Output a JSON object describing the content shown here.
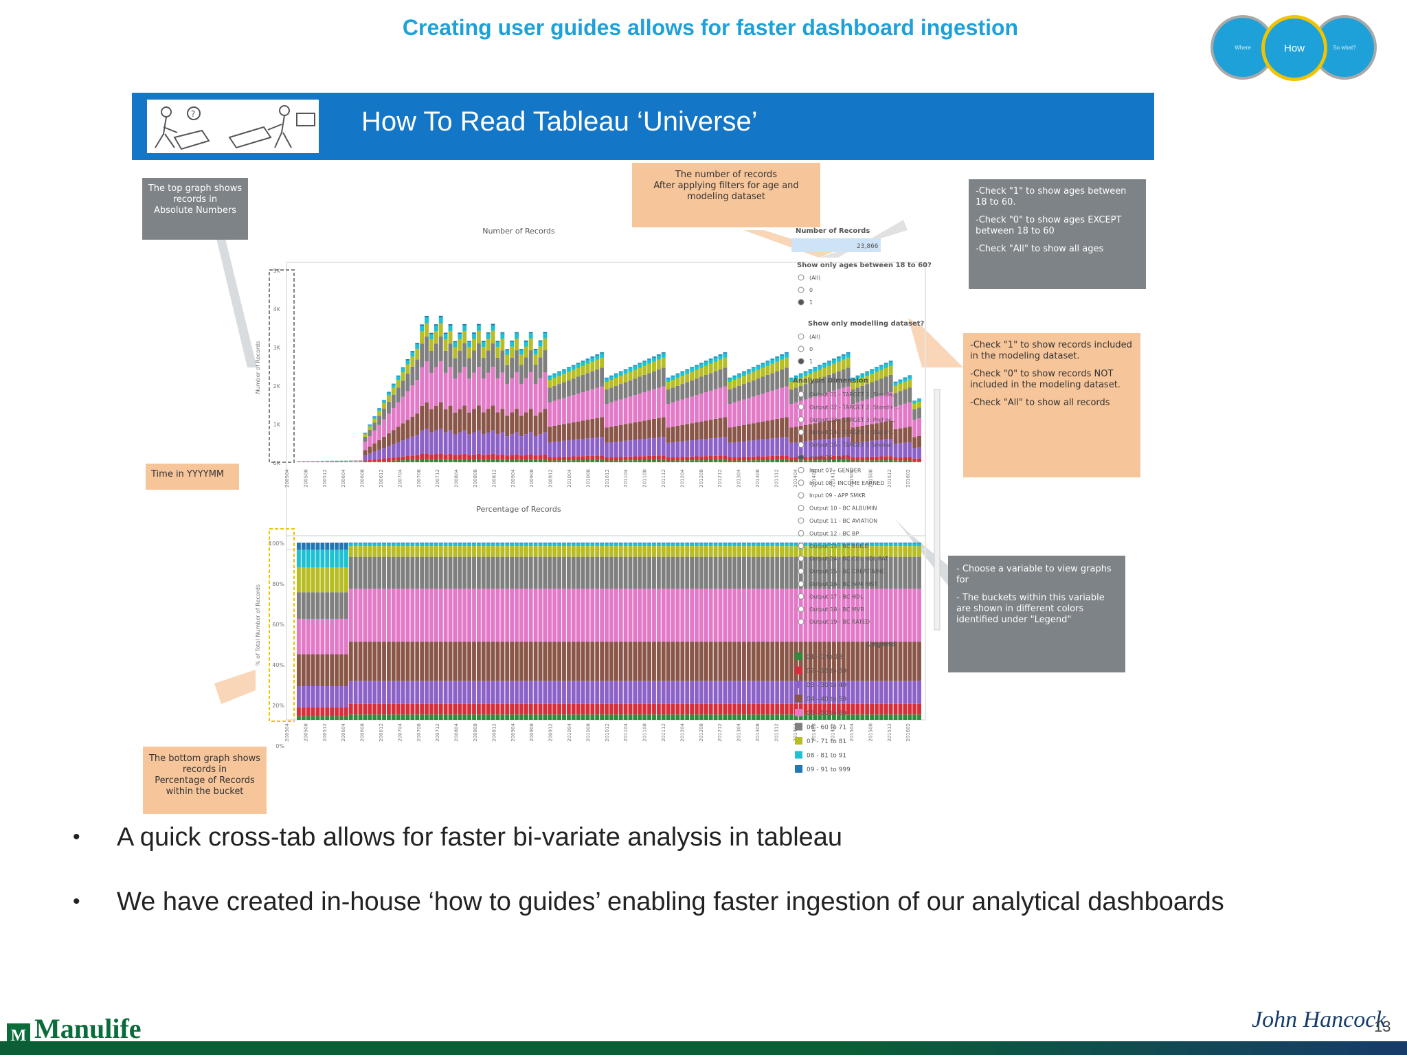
{
  "slide": {
    "title": "Creating user guides allows for faster dashboard ingestion",
    "nav": [
      "Where",
      "How",
      "So what?"
    ],
    "page_number": "13",
    "logos": {
      "left": "Manulife",
      "right": "John Hancock"
    }
  },
  "guide": {
    "banner_title": "How To Read Tableau ‘Universe’",
    "callouts": {
      "top_graph": "The top graph shows\nrecords in\nAbsolute Numbers",
      "num_records": "The number of records\nAfter applying filters for age and\nmodeling dataset",
      "ages": [
        "-Check \"1\" to show ages between 18 to 60.",
        "-Check \"0\" to show ages EXCEPT between 18 to 60",
        "-Check \"All\" to show all ages"
      ],
      "modeling": [
        "-Check \"1\" to show records included in the modeling dataset.",
        "-Check \"0\" to show records NOT included in the modeling dataset.",
        "-Check \"All\" to show all records"
      ],
      "time": "Time in YYYYMM",
      "variable": [
        "- Choose a variable to view graphs for",
        "- The buckets within this variable are shown in different colors identified under \"Legend\""
      ],
      "bottom_graph": "The bottom graph shows\nrecords in\nPercentage of Records\nwithin the bucket"
    },
    "top_chart_title": "Number of Records",
    "bottom_chart_title": "Percentage of Records",
    "top_y_axis": "Number of Records",
    "bottom_y_axis": "% of Total Number of Records",
    "top_ticks": [
      "5K",
      "4K",
      "3K",
      "2K",
      "1K",
      "0K"
    ],
    "bottom_ticks": [
      "100%",
      "80%",
      "60%",
      "40%",
      "20%",
      "0%"
    ],
    "x_ticks": [
      "200504",
      "200508",
      "200512",
      "200604",
      "200608",
      "200612",
      "200704",
      "200708",
      "200712",
      "200804",
      "200808",
      "200812",
      "200904",
      "200908",
      "200912",
      "201004",
      "201008",
      "201012",
      "201104",
      "201108",
      "201112",
      "201204",
      "201208",
      "201212",
      "201304",
      "201308",
      "201312",
      "201404",
      "201408",
      "201412",
      "201504",
      "201508",
      "201512",
      "201602"
    ],
    "filters": {
      "num_records_label": "Number of Records",
      "num_records_value": "23,866",
      "ages_label": "Show only ages between 18 to 60?",
      "ages_options": [
        "(All)",
        "0",
        "1"
      ],
      "modeling_label": "Show only modelling dataset?",
      "modeling_options": [
        "(All)",
        "0",
        "1"
      ],
      "analysis_label": "Analysis Dimension",
      "analysis_options": [
        "Output 01 - TARGET 1: Standa...",
        "Output 02 - TARGET 2: Stand+...",
        "Output 03 - TARGET 3: Pref or...",
        "Output 04 - TARGET 4: Declin...",
        "Output 05 - TARGET 5 Smoker...",
        "Input 06 - AGE",
        "Input 07 - GENDER",
        "Input 08 - INCOME EARNED",
        "Input 09 - APP SMKR",
        "Output 10 - BC ALBUMIN",
        "Output 11 - BC AVIATION",
        "Output 12 - BC BP",
        "Output 13 - BC BUILD",
        "Output 14 - BC COL HDL RAT",
        "Output 15 - BC CREATININE",
        "Output 16 - BC FAM HIST",
        "Output 17 - BC HDL",
        "Output 18 - BC MVR",
        "Output 19 - BC RATED"
      ],
      "legend_label": "Legend"
    }
  },
  "chart_data": {
    "type": "bar",
    "stacked": true,
    "title": "Number of Records",
    "ylabel": "Number of Records",
    "ylim": [
      0,
      5000
    ],
    "x_range": [
      "200504",
      "201602"
    ],
    "series": [
      {
        "name": "01 - 0 to 18",
        "color": "#2e8b3a"
      },
      {
        "name": "02 - 18 to 30",
        "color": "#d62f3b"
      },
      {
        "name": "03 - 30 to 40",
        "color": "#8d62c8"
      },
      {
        "name": "04 - 40 to 50",
        "color": "#8a5648"
      },
      {
        "name": "05 - 50 to 60",
        "color": "#e27ac8"
      },
      {
        "name": "06 - 60 to 71",
        "color": "#7f7f7f"
      },
      {
        "name": "07 - 71 to 81",
        "color": "#b7bd22"
      },
      {
        "name": "08 - 81 to 91",
        "color": "#1ec0d3"
      },
      {
        "name": "09 - 91 to 999",
        "color": "#1f77b4"
      }
    ],
    "bottom_chart": {
      "title": "Percentage of Records",
      "ylabel": "% of Total Number of Records",
      "ylim": [
        0,
        100
      ]
    }
  },
  "bullets": [
    "A quick cross-tab allows for faster bi-variate analysis in tableau",
    "We have created in-house ‘how to guides’ enabling faster ingestion of our analytical dashboards"
  ]
}
